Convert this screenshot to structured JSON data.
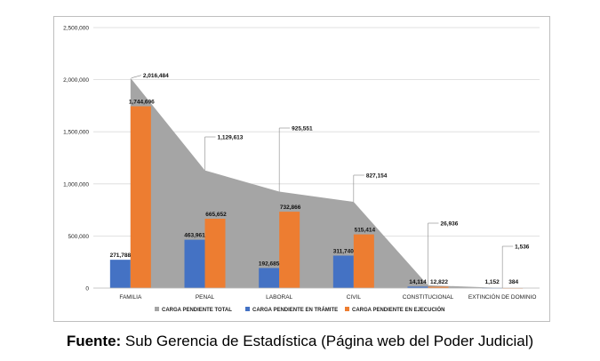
{
  "chart_data": {
    "type": "bar",
    "categories": [
      "FAMILIA",
      "PENAL",
      "LABORAL",
      "CIVIL",
      "CONSTITUCIONAL",
      "EXTINCIÓN DE DOMINIO"
    ],
    "series": [
      {
        "name": "CARGA PENDIENTE TOTAL",
        "type": "area",
        "color": "#a5a5a5",
        "values": [
          2016484,
          1129613,
          925551,
          827154,
          26936,
          1536
        ]
      },
      {
        "name": "CARGA PENDIENTE EN TRÁMITE",
        "type": "bar",
        "color": "#4472c4",
        "values": [
          271788,
          463961,
          192685,
          311740,
          14114,
          1152
        ]
      },
      {
        "name": "CARGA PENDIENTE EN EJECUCIÓN",
        "type": "bar",
        "color": "#ed7d31",
        "values": [
          1744696,
          665652,
          732866,
          515414,
          12822,
          384
        ]
      }
    ],
    "data_labels": {
      "total": [
        "2,016,484",
        "1,129,613",
        "925,551",
        "827,154",
        "26,936",
        "1,536"
      ],
      "tramite": [
        "271,788",
        "463,961",
        "192,685",
        "311,740",
        "14,114",
        "1,152"
      ],
      "ejecucion": [
        "1,744,696",
        "665,652",
        "732,866",
        "515,414",
        "12,822",
        "384"
      ]
    },
    "y_ticks": [
      "0",
      "500,000",
      "1,000,000",
      "1,500,000",
      "2,000,000",
      "2,500,000"
    ],
    "ylim": [
      0,
      2500000
    ],
    "grid": true,
    "legend": "bottom",
    "title": "",
    "xlabel": "",
    "ylabel": ""
  },
  "caption": {
    "label": "Fuente:",
    "text": " Sub Gerencia de Estadística (Página web del Poder Judicial)"
  }
}
